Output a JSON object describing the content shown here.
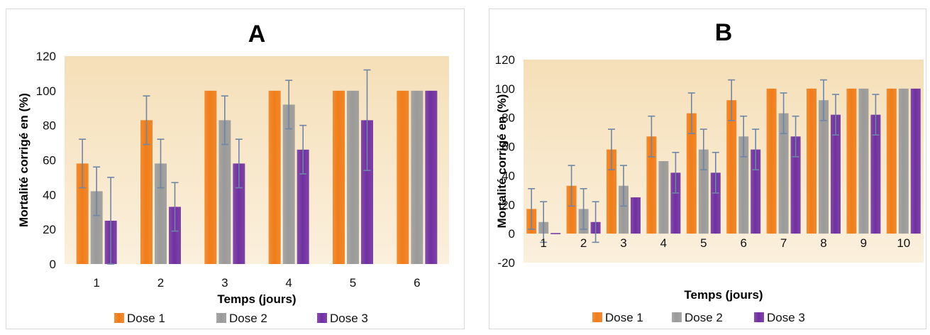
{
  "colors": {
    "dose1": "#f07d1a",
    "dose2": "#9a9a9a",
    "dose3": "#7030a0",
    "error_bar": "#6f86a6",
    "plot_bg": "#f7e6c9"
  },
  "chart_data": [
    {
      "type": "bar",
      "title": "A",
      "xlabel": "Temps (jours)",
      "ylabel": "Mortalité corrigé en (%)",
      "ylim": [
        0,
        120
      ],
      "yticks": [
        0,
        20,
        40,
        60,
        80,
        100,
        120
      ],
      "legend_position": "bottom",
      "categories": [
        "1",
        "2",
        "3",
        "4",
        "5",
        "6"
      ],
      "series": [
        {
          "name": "Dose 1",
          "values": [
            58,
            83,
            100,
            100,
            100,
            100
          ],
          "errors": [
            14,
            14,
            0,
            0,
            0,
            0
          ]
        },
        {
          "name": "Dose 2",
          "values": [
            42,
            58,
            83,
            92,
            100,
            100
          ],
          "errors": [
            14,
            14,
            14,
            14,
            0,
            0
          ]
        },
        {
          "name": "Dose 3",
          "values": [
            25,
            33,
            58,
            66,
            83,
            100
          ],
          "errors": [
            25,
            14,
            14,
            14,
            29,
            0
          ]
        }
      ]
    },
    {
      "type": "bar",
      "title": "B",
      "xlabel": "Temps (jours)",
      "ylabel": "Mortalité corrigé en (%)",
      "ylim": [
        -20,
        120
      ],
      "yticks": [
        -20,
        0,
        20,
        40,
        60,
        80,
        100,
        120
      ],
      "legend_position": "bottom",
      "categories": [
        "1",
        "2",
        "3",
        "4",
        "5",
        "6",
        "7",
        "8",
        "9",
        "10"
      ],
      "series": [
        {
          "name": "Dose 1",
          "values": [
            17,
            33,
            58,
            67,
            83,
            92,
            100,
            100,
            100,
            100
          ],
          "errors": [
            14,
            14,
            14,
            14,
            14,
            14,
            0,
            0,
            0,
            0
          ]
        },
        {
          "name": "Dose 2",
          "values": [
            8,
            17,
            33,
            50,
            58,
            67,
            83,
            92,
            100,
            100
          ],
          "errors": [
            14,
            14,
            14,
            0,
            14,
            14,
            14,
            14,
            0,
            0
          ]
        },
        {
          "name": "Dose 3",
          "values": [
            0,
            8,
            25,
            42,
            42,
            58,
            67,
            82,
            82,
            100
          ],
          "errors": [
            0,
            14,
            0,
            14,
            14,
            14,
            14,
            14,
            14,
            0
          ]
        }
      ]
    }
  ]
}
